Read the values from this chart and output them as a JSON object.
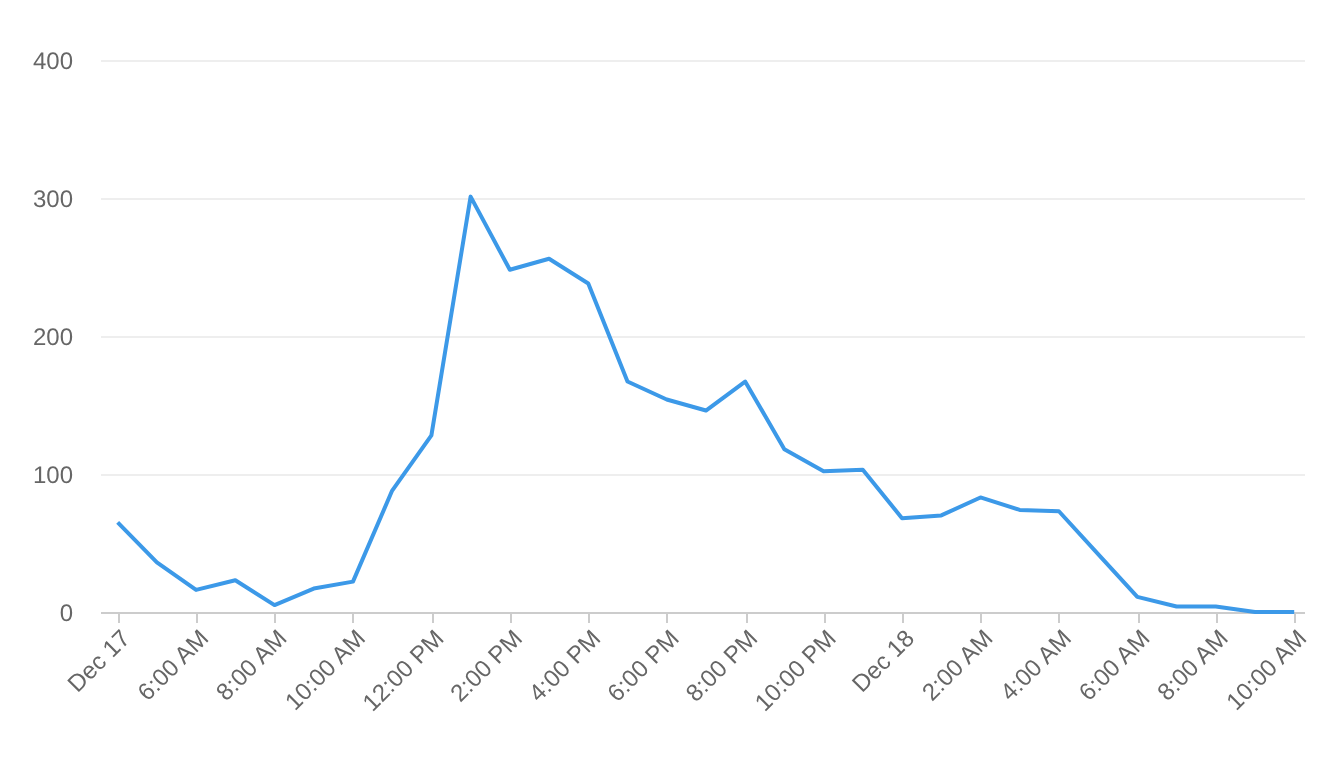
{
  "chart_data": {
    "type": "line",
    "x": [
      "--12-17T04:00",
      "--12-17T05:00",
      "--12-17T06:00",
      "--12-17T07:00",
      "--12-17T08:00",
      "--12-17T09:00",
      "--12-17T10:00",
      "--12-17T11:00",
      "--12-17T12:00",
      "--12-17T13:00",
      "--12-17T14:00",
      "--12-17T15:00",
      "--12-17T16:00",
      "--12-17T17:00",
      "--12-17T18:00",
      "--12-17T19:00",
      "--12-17T20:00",
      "--12-17T21:00",
      "--12-17T22:00",
      "--12-17T23:00",
      "--12-18T00:00",
      "--12-18T01:00",
      "--12-18T02:00",
      "--12-18T03:00",
      "--12-18T04:00",
      "--12-18T05:00",
      "--12-18T06:00",
      "--12-18T07:00",
      "--12-18T08:00",
      "--12-18T09:00",
      "--12-18T10:00"
    ],
    "series": [
      {
        "color": "#3c99e8",
        "values": [
          65,
          36,
          16,
          23,
          5,
          17,
          22,
          88,
          128,
          301,
          248,
          256,
          238,
          167,
          154,
          146,
          167,
          118,
          102,
          103,
          68,
          70,
          83,
          74,
          73,
          42,
          11,
          4,
          4,
          0,
          0
        ]
      }
    ],
    "xlim": [
      "--12-17T03:33",
      "--12-18T10:15"
    ],
    "xticks": [
      {
        "value": "--12-17T04:00",
        "label": "Dec 17"
      },
      {
        "value": "--12-17T06:00",
        "label": "6:00 AM"
      },
      {
        "value": "--12-17T08:00",
        "label": "8:00 AM"
      },
      {
        "value": "--12-17T10:00",
        "label": "10:00 AM"
      },
      {
        "value": "--12-17T12:00",
        "label": "12:00 PM"
      },
      {
        "value": "--12-17T14:00",
        "label": "2:00 PM"
      },
      {
        "value": "--12-17T16:00",
        "label": "4:00 PM"
      },
      {
        "value": "--12-17T18:00",
        "label": "6:00 PM"
      },
      {
        "value": "--12-17T20:00",
        "label": "8:00 PM"
      },
      {
        "value": "--12-17T22:00",
        "label": "10:00 PM"
      },
      {
        "value": "--12-18T00:00",
        "label": "Dec 18"
      },
      {
        "value": "--12-18T02:00",
        "label": "2:00 AM"
      },
      {
        "value": "--12-18T04:00",
        "label": "4:00 AM"
      },
      {
        "value": "--12-18T06:00",
        "label": "6:00 AM"
      },
      {
        "value": "--12-18T08:00",
        "label": "8:00 AM"
      },
      {
        "value": "--12-18T10:00",
        "label": "10:00 AM"
      }
    ],
    "ylim": [
      0,
      400
    ],
    "yticks": [
      0,
      100,
      200,
      300,
      400
    ],
    "grid": "y",
    "marker": "none",
    "line_style": "solid"
  }
}
